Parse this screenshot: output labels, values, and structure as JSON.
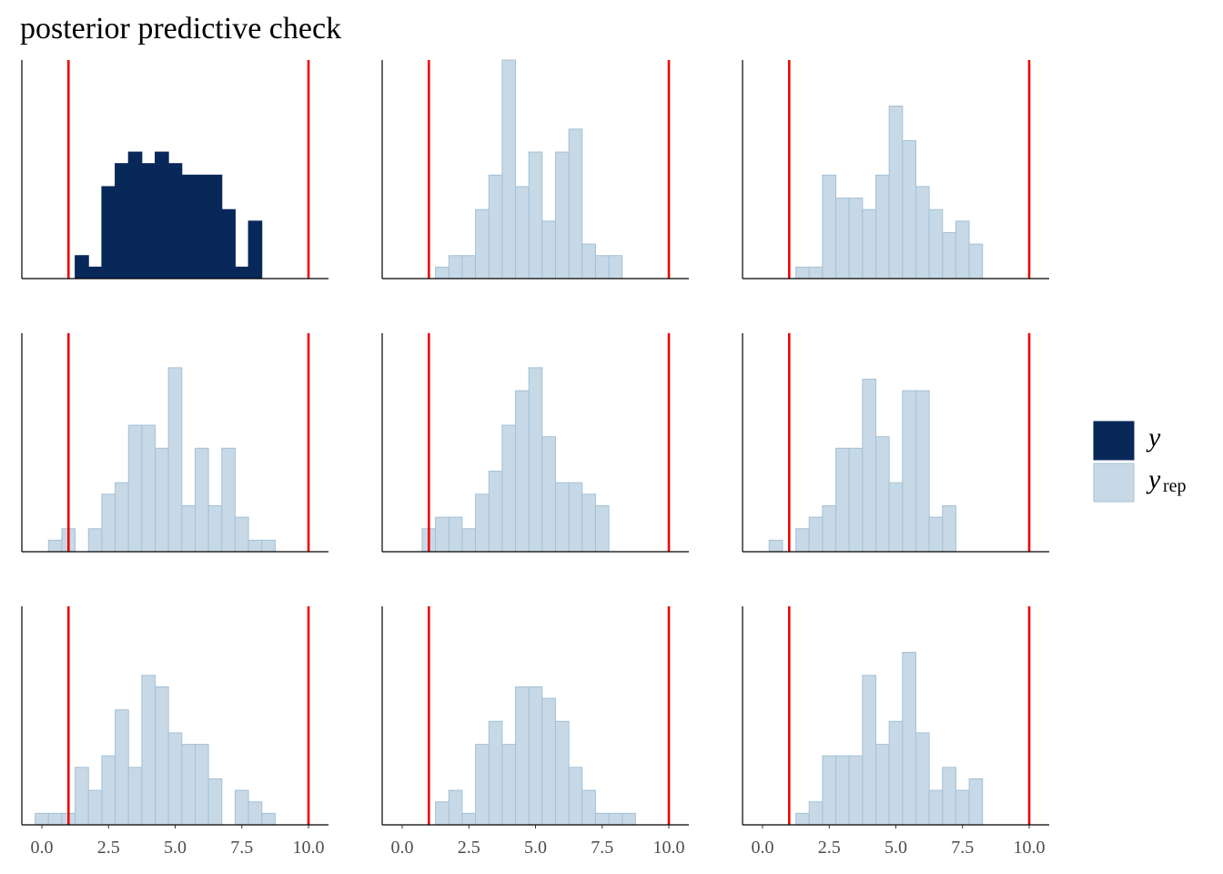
{
  "chart_data": {
    "type": "bar",
    "title": "posterior predictive check",
    "xlabel": "",
    "ylabel": "",
    "xlim": [
      -0.75,
      10.75
    ],
    "x_ticks": [
      0.0,
      2.5,
      5.0,
      7.5,
      10.0
    ],
    "x_tick_labels": [
      "0.0",
      "2.5",
      "5.0",
      "7.5",
      "10.0"
    ],
    "bin_width": 0.5,
    "vlines": [
      1.0,
      10.0
    ],
    "vline_color": "#ee0000",
    "legend": {
      "position": "right",
      "entries": [
        {
          "key": "y",
          "label": "y",
          "sub": "",
          "fill": "#08285a",
          "stroke": "#08285a"
        },
        {
          "key": "yrep",
          "label": "y",
          "sub": "rep",
          "fill": "#c7d9e6",
          "stroke": "#a4c1d6"
        }
      ]
    },
    "panels": [
      {
        "series": "y",
        "bins": [
          {
            "x0": 1.25,
            "count": 2
          },
          {
            "x0": 1.75,
            "count": 1
          },
          {
            "x0": 2.25,
            "count": 8
          },
          {
            "x0": 2.75,
            "count": 10
          },
          {
            "x0": 3.25,
            "count": 11
          },
          {
            "x0": 3.75,
            "count": 10
          },
          {
            "x0": 4.25,
            "count": 11
          },
          {
            "x0": 4.75,
            "count": 10
          },
          {
            "x0": 5.25,
            "count": 9
          },
          {
            "x0": 5.75,
            "count": 9
          },
          {
            "x0": 6.25,
            "count": 9
          },
          {
            "x0": 6.75,
            "count": 6
          },
          {
            "x0": 7.25,
            "count": 1
          },
          {
            "x0": 7.75,
            "count": 5
          }
        ]
      },
      {
        "series": "yrep",
        "bins": [
          {
            "x0": 1.25,
            "count": 1
          },
          {
            "x0": 1.75,
            "count": 2
          },
          {
            "x0": 2.25,
            "count": 2
          },
          {
            "x0": 2.75,
            "count": 6
          },
          {
            "x0": 3.25,
            "count": 9
          },
          {
            "x0": 3.75,
            "count": 19
          },
          {
            "x0": 4.25,
            "count": 8
          },
          {
            "x0": 4.75,
            "count": 11
          },
          {
            "x0": 5.25,
            "count": 5
          },
          {
            "x0": 5.75,
            "count": 11
          },
          {
            "x0": 6.25,
            "count": 13
          },
          {
            "x0": 6.75,
            "count": 3
          },
          {
            "x0": 7.25,
            "count": 2
          },
          {
            "x0": 7.75,
            "count": 2
          }
        ]
      },
      {
        "series": "yrep",
        "bins": [
          {
            "x0": 1.25,
            "count": 1
          },
          {
            "x0": 1.75,
            "count": 1
          },
          {
            "x0": 2.25,
            "count": 9
          },
          {
            "x0": 2.75,
            "count": 7
          },
          {
            "x0": 3.25,
            "count": 7
          },
          {
            "x0": 3.75,
            "count": 6
          },
          {
            "x0": 4.25,
            "count": 9
          },
          {
            "x0": 4.75,
            "count": 15
          },
          {
            "x0": 5.25,
            "count": 12
          },
          {
            "x0": 5.75,
            "count": 8
          },
          {
            "x0": 6.25,
            "count": 6
          },
          {
            "x0": 6.75,
            "count": 4
          },
          {
            "x0": 7.25,
            "count": 5
          },
          {
            "x0": 7.75,
            "count": 3
          }
        ]
      },
      {
        "series": "yrep",
        "bins": [
          {
            "x0": 0.25,
            "count": 1
          },
          {
            "x0": 0.75,
            "count": 2
          },
          {
            "x0": 1.75,
            "count": 2
          },
          {
            "x0": 2.25,
            "count": 5
          },
          {
            "x0": 2.75,
            "count": 6
          },
          {
            "x0": 3.25,
            "count": 11
          },
          {
            "x0": 3.75,
            "count": 11
          },
          {
            "x0": 4.25,
            "count": 9
          },
          {
            "x0": 4.75,
            "count": 16
          },
          {
            "x0": 5.25,
            "count": 4
          },
          {
            "x0": 5.75,
            "count": 9
          },
          {
            "x0": 6.25,
            "count": 4
          },
          {
            "x0": 6.75,
            "count": 9
          },
          {
            "x0": 7.25,
            "count": 3
          },
          {
            "x0": 7.75,
            "count": 1
          },
          {
            "x0": 8.25,
            "count": 1
          }
        ]
      },
      {
        "series": "yrep",
        "bins": [
          {
            "x0": 0.75,
            "count": 2
          },
          {
            "x0": 1.25,
            "count": 3
          },
          {
            "x0": 1.75,
            "count": 3
          },
          {
            "x0": 2.25,
            "count": 2
          },
          {
            "x0": 2.75,
            "count": 5
          },
          {
            "x0": 3.25,
            "count": 7
          },
          {
            "x0": 3.75,
            "count": 11
          },
          {
            "x0": 4.25,
            "count": 14
          },
          {
            "x0": 4.75,
            "count": 16
          },
          {
            "x0": 5.25,
            "count": 10
          },
          {
            "x0": 5.75,
            "count": 6
          },
          {
            "x0": 6.25,
            "count": 6
          },
          {
            "x0": 6.75,
            "count": 5
          },
          {
            "x0": 7.25,
            "count": 4
          }
        ]
      },
      {
        "series": "yrep",
        "bins": [
          {
            "x0": 0.25,
            "count": 1
          },
          {
            "x0": 1.25,
            "count": 2
          },
          {
            "x0": 1.75,
            "count": 3
          },
          {
            "x0": 2.25,
            "count": 4
          },
          {
            "x0": 2.75,
            "count": 9
          },
          {
            "x0": 3.25,
            "count": 9
          },
          {
            "x0": 3.75,
            "count": 15
          },
          {
            "x0": 4.25,
            "count": 10
          },
          {
            "x0": 4.75,
            "count": 6
          },
          {
            "x0": 5.25,
            "count": 14
          },
          {
            "x0": 5.75,
            "count": 14
          },
          {
            "x0": 6.25,
            "count": 3
          },
          {
            "x0": 6.75,
            "count": 4
          }
        ]
      },
      {
        "series": "yrep",
        "bins": [
          {
            "x0": -0.25,
            "count": 1
          },
          {
            "x0": 0.25,
            "count": 1
          },
          {
            "x0": 0.75,
            "count": 1
          },
          {
            "x0": 1.25,
            "count": 5
          },
          {
            "x0": 1.75,
            "count": 3
          },
          {
            "x0": 2.25,
            "count": 6
          },
          {
            "x0": 2.75,
            "count": 10
          },
          {
            "x0": 3.25,
            "count": 5
          },
          {
            "x0": 3.75,
            "count": 13
          },
          {
            "x0": 4.25,
            "count": 12
          },
          {
            "x0": 4.75,
            "count": 8
          },
          {
            "x0": 5.25,
            "count": 7
          },
          {
            "x0": 5.75,
            "count": 7
          },
          {
            "x0": 6.25,
            "count": 4
          },
          {
            "x0": 6.75,
            "count": 0
          },
          {
            "x0": 7.25,
            "count": 3
          },
          {
            "x0": 7.75,
            "count": 2
          },
          {
            "x0": 8.25,
            "count": 1
          }
        ]
      },
      {
        "series": "yrep",
        "bins": [
          {
            "x0": 1.25,
            "count": 2
          },
          {
            "x0": 1.75,
            "count": 3
          },
          {
            "x0": 2.25,
            "count": 1
          },
          {
            "x0": 2.75,
            "count": 7
          },
          {
            "x0": 3.25,
            "count": 9
          },
          {
            "x0": 3.75,
            "count": 7
          },
          {
            "x0": 4.25,
            "count": 12
          },
          {
            "x0": 4.75,
            "count": 12
          },
          {
            "x0": 5.25,
            "count": 11
          },
          {
            "x0": 5.75,
            "count": 9
          },
          {
            "x0": 6.25,
            "count": 5
          },
          {
            "x0": 6.75,
            "count": 3
          },
          {
            "x0": 7.25,
            "count": 1
          },
          {
            "x0": 7.75,
            "count": 1
          },
          {
            "x0": 8.25,
            "count": 1
          }
        ]
      },
      {
        "series": "yrep",
        "bins": [
          {
            "x0": 1.25,
            "count": 1
          },
          {
            "x0": 1.75,
            "count": 2
          },
          {
            "x0": 2.25,
            "count": 6
          },
          {
            "x0": 2.75,
            "count": 6
          },
          {
            "x0": 3.25,
            "count": 6
          },
          {
            "x0": 3.75,
            "count": 13
          },
          {
            "x0": 4.25,
            "count": 7
          },
          {
            "x0": 4.75,
            "count": 9
          },
          {
            "x0": 5.25,
            "count": 15
          },
          {
            "x0": 5.75,
            "count": 8
          },
          {
            "x0": 6.25,
            "count": 3
          },
          {
            "x0": 6.75,
            "count": 5
          },
          {
            "x0": 7.25,
            "count": 3
          },
          {
            "x0": 7.75,
            "count": 4
          }
        ]
      }
    ]
  }
}
